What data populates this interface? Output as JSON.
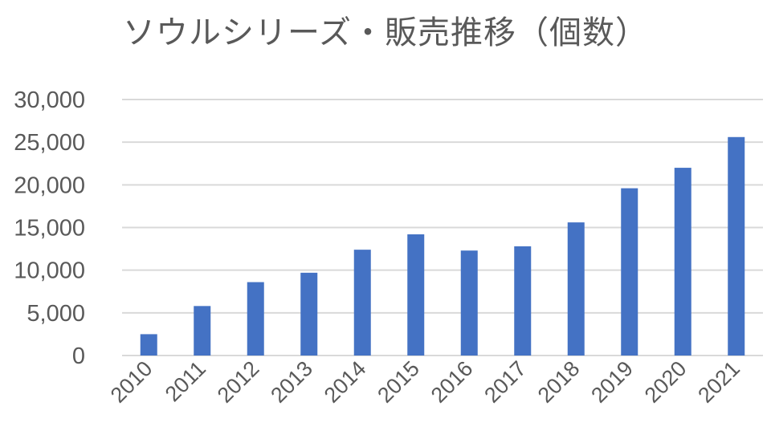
{
  "chart_data": {
    "type": "bar",
    "title": "ソウルシリーズ・販売推移（個数）",
    "xlabel": "",
    "ylabel": "",
    "categories": [
      "2010",
      "2011",
      "2012",
      "2013",
      "2014",
      "2015",
      "2016",
      "2017",
      "2018",
      "2019",
      "2020",
      "2021"
    ],
    "values": [
      2500,
      5800,
      8600,
      9700,
      12400,
      14200,
      12300,
      12800,
      15600,
      19600,
      22000,
      25600
    ],
    "ylim": [
      0,
      30000
    ],
    "yticks": [
      "0",
      "5,000",
      "10,000",
      "15,000",
      "20,000",
      "25,000",
      "30,000"
    ],
    "grid": true,
    "colors": {
      "bar": "#4472C4",
      "grid": "#D9D9D9",
      "text": "#595959"
    }
  }
}
